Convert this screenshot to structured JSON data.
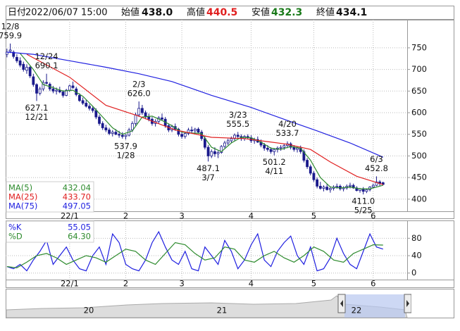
{
  "header": {
    "date_label": "日付",
    "datetime": "2022/06/07 15:00",
    "open_label": "始値",
    "open": "438.0",
    "high_label": "高値",
    "high": "440.5",
    "low_label": "安値",
    "low": "432.3",
    "close_label": "終値",
    "close": "434.1"
  },
  "chart_data": [
    {
      "type": "candlestick",
      "x": [
        0,
        1,
        2,
        3,
        4,
        5,
        6,
        7,
        8,
        9,
        10,
        11,
        12,
        13,
        14,
        15,
        16,
        17,
        18,
        19,
        20,
        21,
        22,
        23,
        24,
        25,
        26,
        27,
        28,
        29,
        30,
        31,
        32,
        33,
        34,
        35,
        36,
        37,
        38,
        39,
        40,
        41,
        42,
        43,
        44,
        45,
        46,
        47,
        48,
        49,
        50,
        51,
        52,
        53,
        54,
        55,
        56,
        57,
        58,
        59,
        60,
        61,
        62,
        63,
        64,
        65,
        66,
        67,
        68,
        69,
        70,
        71,
        72,
        73,
        74,
        75,
        76,
        77,
        78,
        79,
        80,
        81,
        82,
        83,
        84,
        85,
        86,
        87,
        88,
        89,
        90,
        91,
        92,
        93,
        94,
        95,
        96,
        97,
        98,
        99,
        100,
        101,
        102,
        103,
        104,
        105,
        106,
        107,
        108,
        109,
        110,
        111,
        112,
        113,
        114
      ],
      "ohlc": [
        [
          735,
          748,
          728,
          740
        ],
        [
          742,
          759.9,
          738,
          745
        ],
        [
          740,
          744,
          725,
          730
        ],
        [
          728,
          735,
          715,
          720
        ],
        [
          720,
          728,
          705,
          710
        ],
        [
          712,
          718,
          695,
          700
        ],
        [
          698,
          712,
          690,
          705
        ],
        [
          705,
          708,
          680,
          685
        ],
        [
          683,
          690,
          660,
          665
        ],
        [
          665,
          668,
          627.1,
          645
        ],
        [
          645,
          660,
          640,
          655
        ],
        [
          655,
          675,
          650,
          670
        ],
        [
          670,
          690.1,
          665,
          668
        ],
        [
          666,
          670,
          650,
          655
        ],
        [
          655,
          662,
          645,
          650
        ],
        [
          650,
          658,
          642,
          652
        ],
        [
          652,
          660,
          645,
          648
        ],
        [
          648,
          652,
          635,
          640
        ],
        [
          640,
          655,
          638,
          652
        ],
        [
          652,
          665,
          648,
          662
        ],
        [
          662,
          672,
          655,
          658
        ],
        [
          655,
          660,
          638,
          642
        ],
        [
          640,
          645,
          625,
          628
        ],
        [
          628,
          635,
          618,
          622
        ],
        [
          622,
          630,
          612,
          615
        ],
        [
          615,
          620,
          605,
          610
        ],
        [
          610,
          615,
          600,
          605
        ],
        [
          605,
          610,
          585,
          590
        ],
        [
          590,
          595,
          570,
          575
        ],
        [
          575,
          580,
          560,
          565
        ],
        [
          565,
          572,
          555,
          560
        ],
        [
          560,
          565,
          548,
          552
        ],
        [
          552,
          560,
          545,
          555
        ],
        [
          555,
          562,
          548,
          550
        ],
        [
          550,
          558,
          542,
          548
        ],
        [
          548,
          555,
          540,
          545
        ],
        [
          545,
          550,
          537.9,
          548
        ],
        [
          548,
          565,
          545,
          560
        ],
        [
          560,
          580,
          555,
          575
        ],
        [
          575,
          600,
          570,
          595
        ],
        [
          595,
          626,
          590,
          610
        ],
        [
          610,
          618,
          595,
          600
        ],
        [
          600,
          605,
          585,
          590
        ],
        [
          590,
          598,
          580,
          585
        ],
        [
          585,
          590,
          570,
          575
        ],
        [
          575,
          585,
          568,
          580
        ],
        [
          580,
          592,
          575,
          588
        ],
        [
          588,
          598,
          582,
          585
        ],
        [
          585,
          590,
          565,
          570
        ],
        [
          570,
          575,
          555,
          560
        ],
        [
          560,
          572,
          555,
          568
        ],
        [
          568,
          575,
          558,
          562
        ],
        [
          562,
          565,
          545,
          550
        ],
        [
          550,
          558,
          540,
          545
        ],
        [
          545,
          555,
          540,
          552
        ],
        [
          552,
          565,
          548,
          560
        ],
        [
          560,
          568,
          552,
          558
        ],
        [
          558,
          565,
          550,
          562
        ],
        [
          562,
          566,
          552,
          555
        ],
        [
          555,
          560,
          535,
          540
        ],
        [
          540,
          545,
          515,
          520
        ],
        [
          520,
          525,
          487.1,
          500
        ],
        [
          500,
          515,
          495,
          510
        ],
        [
          510,
          520,
          498,
          505
        ],
        [
          505,
          512,
          495,
          508
        ],
        [
          508,
          525,
          505,
          522
        ],
        [
          522,
          535,
          518,
          530
        ],
        [
          530,
          540,
          525,
          535
        ],
        [
          535,
          545,
          530,
          540
        ],
        [
          540,
          552,
          535,
          548
        ],
        [
          548,
          555.5,
          540,
          545
        ],
        [
          545,
          550,
          535,
          540
        ],
        [
          540,
          548,
          535,
          545
        ],
        [
          545,
          550,
          538,
          542
        ],
        [
          542,
          548,
          530,
          535
        ],
        [
          535,
          542,
          528,
          538
        ],
        [
          538,
          545,
          530,
          532
        ],
        [
          532,
          538,
          520,
          525
        ],
        [
          525,
          530,
          512,
          518
        ],
        [
          518,
          525,
          510,
          515
        ],
        [
          515,
          520,
          505,
          510
        ],
        [
          510,
          518,
          501.2,
          515
        ],
        [
          515,
          522,
          508,
          518
        ],
        [
          518,
          525,
          512,
          520
        ],
        [
          520,
          528,
          514,
          524
        ],
        [
          524,
          533.7,
          518,
          528
        ],
        [
          528,
          532,
          515,
          520
        ],
        [
          520,
          525,
          510,
          515
        ],
        [
          515,
          522,
          508,
          518
        ],
        [
          518,
          524,
          505,
          510
        ],
        [
          510,
          515,
          485,
          490
        ],
        [
          490,
          495,
          470,
          475
        ],
        [
          475,
          480,
          455,
          460
        ],
        [
          460,
          465,
          440,
          445
        ],
        [
          445,
          450,
          425,
          430
        ],
        [
          430,
          440,
          422,
          425
        ],
        [
          425,
          432,
          418,
          428
        ],
        [
          428,
          435,
          420,
          422
        ],
        [
          422,
          430,
          415,
          425
        ],
        [
          425,
          432,
          420,
          428
        ],
        [
          428,
          436,
          424,
          430
        ],
        [
          430,
          434,
          420,
          424
        ],
        [
          424,
          430,
          418,
          426
        ],
        [
          426,
          434,
          422,
          430
        ],
        [
          430,
          438,
          425,
          432
        ],
        [
          432,
          436,
          424,
          426
        ],
        [
          426,
          430,
          418,
          420
        ],
        [
          420,
          426,
          415,
          424
        ],
        [
          424,
          428,
          411,
          418
        ],
        [
          418,
          425,
          414,
          422
        ],
        [
          422,
          430,
          418,
          428
        ],
        [
          428,
          436,
          425,
          432
        ],
        [
          432,
          452.8,
          430,
          440
        ],
        [
          440,
          444,
          430,
          436
        ],
        [
          438,
          440.5,
          432.3,
          434.1
        ]
      ],
      "candle_color": "#1a1a8c",
      "series": [
        {
          "name": "MA(5)",
          "color": "#2e8b2e",
          "current": 432.04,
          "x": [
            4,
            8,
            11,
            14,
            17,
            20,
            23,
            26,
            29,
            32,
            35,
            38,
            41,
            44,
            47,
            50,
            53,
            56,
            59,
            62,
            65,
            68,
            71,
            74,
            77,
            80,
            83,
            86,
            89,
            92,
            95,
            98,
            101,
            104,
            107,
            110,
            114
          ],
          "values": [
            737,
            700,
            665,
            658,
            650,
            652,
            638,
            615,
            590,
            565,
            550,
            558,
            590,
            592,
            582,
            570,
            555,
            553,
            552,
            520,
            510,
            530,
            543,
            542,
            532,
            518,
            515,
            522,
            518,
            490,
            450,
            428,
            426,
            428,
            424,
            424,
            432.04
          ]
        },
        {
          "name": "MA(25)",
          "color": "#e02020",
          "current": 433.7,
          "current_label": "433.70",
          "x": [
            6,
            19,
            30,
            40,
            51,
            62,
            72,
            85,
            92,
            98,
            106,
            114
          ],
          "values": [
            735,
            682,
            617,
            592,
            560,
            543,
            540,
            527,
            515,
            486,
            453,
            433.7
          ]
        },
        {
          "name": "MA(75)",
          "color": "#2020e0",
          "current": 497.05,
          "x": [
            0,
            8,
            19,
            30,
            40,
            50,
            62,
            74,
            85,
            94,
            104,
            114
          ],
          "values": [
            740,
            735,
            720,
            705,
            690,
            672,
            640,
            612,
            582,
            558,
            530,
            497.05
          ]
        }
      ],
      "annotations": [
        {
          "x": 1,
          "kind": "high",
          "date": "12/8",
          "value": 759.9
        },
        {
          "x": 12,
          "kind": "high",
          "date": "12/24",
          "value": 690.1
        },
        {
          "x": 9,
          "kind": "low",
          "date": "12/21",
          "value": 627.1
        },
        {
          "x": 36,
          "kind": "low",
          "date": "1/28",
          "value": 537.9
        },
        {
          "x": 40,
          "kind": "high",
          "date": "2/3",
          "value": 626,
          "label": "626.0"
        },
        {
          "x": 61,
          "kind": "low",
          "date": "3/7",
          "value": 487.1
        },
        {
          "x": 70,
          "kind": "high",
          "date": "3/23",
          "value": 555.5
        },
        {
          "x": 81,
          "kind": "low",
          "date": "4/11",
          "value": 501.2
        },
        {
          "x": 85,
          "kind": "high",
          "date": "4/20",
          "value": 533.7
        },
        {
          "x": 108,
          "kind": "low",
          "date": "5/25",
          "value": 411,
          "label": "411.0"
        },
        {
          "x": 112,
          "kind": "high",
          "date": "6/3",
          "value": 452.8
        }
      ],
      "xlim": [
        -0.4,
        121.3
      ],
      "ylim": [
        372,
        815
      ],
      "yticks": [
        400,
        450,
        500,
        550,
        600,
        650,
        700,
        750
      ],
      "xticks": [
        {
          "value": 19,
          "label": "22/1"
        },
        {
          "value": 36,
          "label": "2"
        },
        {
          "value": 53,
          "label": "3"
        },
        {
          "value": 74,
          "label": "4"
        },
        {
          "value": 93,
          "label": "5"
        },
        {
          "value": 111,
          "label": "6"
        }
      ],
      "grid": true
    },
    {
      "type": "line",
      "series": [
        {
          "name": "%K",
          "color": "#2020e0",
          "current": 55.05,
          "x": [
            0,
            2,
            4,
            6,
            8,
            10,
            12,
            14,
            16,
            18,
            20,
            22,
            24,
            26,
            28,
            30,
            32,
            34,
            36,
            38,
            40,
            42,
            44,
            46,
            48,
            50,
            52,
            54,
            56,
            58,
            60,
            62,
            64,
            66,
            68,
            70,
            72,
            74,
            76,
            78,
            80,
            82,
            84,
            86,
            88,
            90,
            92,
            94,
            96,
            98,
            100,
            102,
            104,
            106,
            108,
            110,
            112,
            114
          ],
          "values": [
            15,
            10,
            20,
            5,
            30,
            50,
            75,
            20,
            40,
            60,
            30,
            10,
            5,
            40,
            60,
            20,
            90,
            70,
            20,
            10,
            5,
            30,
            70,
            95,
            60,
            30,
            20,
            50,
            10,
            5,
            60,
            40,
            20,
            75,
            50,
            10,
            30,
            65,
            90,
            30,
            15,
            50,
            70,
            85,
            40,
            20,
            60,
            5,
            10,
            35,
            80,
            45,
            20,
            10,
            50,
            90,
            60,
            55.05
          ]
        },
        {
          "name": "%D",
          "color": "#2e8b2e",
          "current": 64.3,
          "current_label": "64.30",
          "x": [
            0,
            3,
            6,
            9,
            12,
            15,
            18,
            21,
            24,
            27,
            30,
            33,
            36,
            39,
            42,
            45,
            48,
            51,
            54,
            57,
            60,
            63,
            66,
            69,
            72,
            75,
            78,
            81,
            84,
            87,
            90,
            93,
            96,
            99,
            102,
            105,
            108,
            111,
            114
          ],
          "values": [
            15,
            12,
            25,
            40,
            45,
            35,
            20,
            30,
            40,
            35,
            25,
            40,
            55,
            50,
            30,
            20,
            45,
            70,
            65,
            45,
            30,
            35,
            60,
            55,
            30,
            25,
            40,
            50,
            35,
            25,
            40,
            60,
            50,
            30,
            25,
            45,
            55,
            65,
            64.3
          ]
        }
      ],
      "xlim": [
        -0.4,
        121.3
      ],
      "ylim": [
        -15,
        121
      ],
      "yticks": [
        0,
        40,
        80
      ],
      "xticks": [
        {
          "value": 19,
          "label": "22/1"
        },
        {
          "value": 36,
          "label": "2"
        },
        {
          "value": 53,
          "label": "3"
        },
        {
          "value": 74,
          "label": "4"
        },
        {
          "value": 93,
          "label": "5"
        },
        {
          "value": 111,
          "label": "6"
        }
      ],
      "grid": true
    }
  ],
  "navigator": {
    "labels": [
      "20",
      "21",
      "22"
    ]
  }
}
